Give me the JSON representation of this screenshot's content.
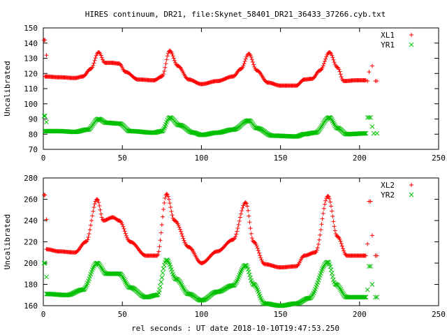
{
  "title": "HIRES continuum, DR21, file:Skynet_58401_DR21_36433_37266.cyb.txt",
  "xlabel": "rel seconds : UT date 2018-10-10T19:47:53.250",
  "colors": {
    "red": "#ff0000",
    "green": "#00c000",
    "axis": "#000000"
  },
  "chart_data": [
    {
      "type": "scatter",
      "ylabel": "Uncalibrated",
      "xlim": [
        0,
        250
      ],
      "ylim": [
        70,
        150
      ],
      "xticks": [
        0,
        50,
        100,
        150,
        200,
        250
      ],
      "yticks": [
        70,
        80,
        90,
        100,
        110,
        120,
        130,
        140,
        150
      ],
      "legend_position": "top-right",
      "series": [
        {
          "name": "XL1",
          "color": "#ff0000",
          "marker": "+",
          "base_points": [
            [
              1,
              118
            ],
            [
              10,
              117.5
            ],
            [
              20,
              117
            ],
            [
              25,
              118
            ],
            [
              30,
              123
            ],
            [
              35,
              134
            ],
            [
              39,
              127
            ],
            [
              43,
              127
            ],
            [
              48,
              126.5
            ],
            [
              52,
              121
            ],
            [
              60,
              116
            ],
            [
              70,
              115.5
            ],
            [
              75,
              118
            ],
            [
              80,
              135
            ],
            [
              85,
              125
            ],
            [
              92,
              116
            ],
            [
              100,
              113
            ],
            [
              110,
              115
            ],
            [
              120,
              118
            ],
            [
              125,
              123
            ],
            [
              130,
              133
            ],
            [
              135,
              122
            ],
            [
              142,
              114
            ],
            [
              150,
              112
            ],
            [
              160,
              112
            ],
            [
              165,
              116
            ],
            [
              170,
              116.5
            ],
            [
              175,
              122
            ],
            [
              181,
              134
            ],
            [
              186,
              124
            ],
            [
              190,
              115
            ],
            [
              198,
              115.5
            ],
            [
              204,
              115.5
            ]
          ],
          "outliers": [
            [
              0.5,
              142
            ],
            [
              1,
              142
            ],
            [
              2,
              132
            ],
            [
              205,
              115
            ],
            [
              206,
              121
            ],
            [
              208,
              125
            ],
            [
              210,
              115
            ],
            [
              211,
              115
            ]
          ]
        },
        {
          "name": "YR1",
          "color": "#00c000",
          "marker": "x",
          "base_points": [
            [
              1,
              82
            ],
            [
              10,
              82
            ],
            [
              20,
              81.5
            ],
            [
              28,
              83
            ],
            [
              35,
              90
            ],
            [
              40,
              87.5
            ],
            [
              48,
              87
            ],
            [
              55,
              82
            ],
            [
              70,
              81
            ],
            [
              75,
              82
            ],
            [
              80,
              91
            ],
            [
              86,
              86
            ],
            [
              95,
              81
            ],
            [
              100,
              79.5
            ],
            [
              110,
              81
            ],
            [
              120,
              83
            ],
            [
              130,
              89
            ],
            [
              135,
              84
            ],
            [
              145,
              79
            ],
            [
              160,
              78.5
            ],
            [
              165,
              80
            ],
            [
              172,
              81
            ],
            [
              181,
              91
            ],
            [
              186,
              84
            ],
            [
              192,
              80
            ],
            [
              204,
              80.5
            ]
          ],
          "outliers": [
            [
              0.5,
              92
            ],
            [
              1,
              92
            ],
            [
              2,
              88
            ],
            [
              205,
              91
            ],
            [
              206,
              91
            ],
            [
              207,
              91
            ],
            [
              208,
              85
            ],
            [
              209,
              80.5
            ],
            [
              211,
              80.5
            ]
          ]
        }
      ]
    },
    {
      "type": "scatter",
      "ylabel": "Uncalibrated",
      "xlim": [
        0,
        250
      ],
      "ylim": [
        160,
        280
      ],
      "xticks": [
        0,
        50,
        100,
        150,
        200,
        250
      ],
      "yticks": [
        160,
        180,
        200,
        220,
        240,
        260,
        280
      ],
      "legend_position": "top-right",
      "series": [
        {
          "name": "XL2",
          "color": "#ff0000",
          "marker": "+",
          "base_points": [
            [
              2,
              213
            ],
            [
              10,
              211
            ],
            [
              20,
              210
            ],
            [
              27,
              220
            ],
            [
              34,
              260
            ],
            [
              38,
              240
            ],
            [
              44,
              243
            ],
            [
              48,
              240
            ],
            [
              55,
              220
            ],
            [
              65,
              207
            ],
            [
              72,
              207
            ],
            [
              78,
              265
            ],
            [
              83,
              240
            ],
            [
              92,
              215
            ],
            [
              100,
              200
            ],
            [
              110,
              211
            ],
            [
              120,
              222
            ],
            [
              128,
              257
            ],
            [
              133,
              220
            ],
            [
              140,
              199
            ],
            [
              150,
              196
            ],
            [
              160,
              197
            ],
            [
              165,
              207
            ],
            [
              172,
              210
            ],
            [
              180,
              263
            ],
            [
              186,
              225
            ],
            [
              192,
              207
            ],
            [
              204,
              207
            ]
          ],
          "outliers": [
            [
              0.5,
              264
            ],
            [
              1,
              264
            ],
            [
              2,
              241
            ],
            [
              205,
              218
            ],
            [
              206,
              258
            ],
            [
              207,
              258
            ],
            [
              208,
              226
            ],
            [
              210,
              207
            ],
            [
              211,
              207
            ]
          ]
        },
        {
          "name": "YR2",
          "color": "#00c000",
          "marker": "x",
          "base_points": [
            [
              2,
              171
            ],
            [
              15,
              170
            ],
            [
              25,
              175
            ],
            [
              34,
              200
            ],
            [
              40,
              190
            ],
            [
              48,
              190
            ],
            [
              55,
              177
            ],
            [
              65,
              168
            ],
            [
              72,
              170
            ],
            [
              78,
              203
            ],
            [
              84,
              185
            ],
            [
              92,
              171
            ],
            [
              100,
              165
            ],
            [
              110,
              173
            ],
            [
              120,
              179
            ],
            [
              128,
              198
            ],
            [
              133,
              180
            ],
            [
              140,
              162
            ],
            [
              150,
              160
            ],
            [
              160,
              162
            ],
            [
              168,
              167
            ],
            [
              180,
              201
            ],
            [
              185,
              180
            ],
            [
              192,
              168
            ],
            [
              204,
              168
            ]
          ],
          "outliers": [
            [
              0.5,
              200
            ],
            [
              1,
              200
            ],
            [
              2,
              187
            ],
            [
              205,
              175
            ],
            [
              206,
              197
            ],
            [
              207,
              197
            ],
            [
              208,
              180
            ],
            [
              210,
              168
            ],
            [
              211,
              168
            ]
          ]
        }
      ]
    }
  ]
}
